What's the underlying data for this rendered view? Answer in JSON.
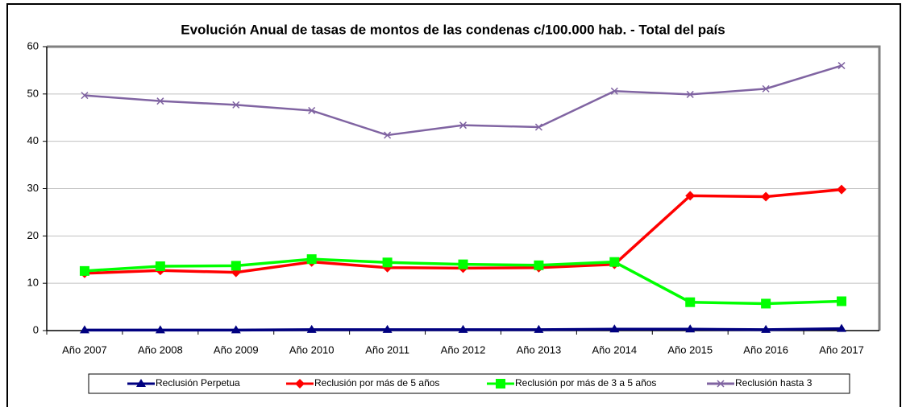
{
  "chart_data": {
    "type": "line",
    "title": "Evolución Anual de tasas de montos de las condenas c/100.000 hab. - Total del país",
    "categories": [
      "Año 2007",
      "Año 2008",
      "Año 2009",
      "Año 2010",
      "Año 2011",
      "Año 2012",
      "Año 2013",
      "Año 2014",
      "Año 2015",
      "Año 2016",
      "Año 2017"
    ],
    "series": [
      {
        "name": "Reclusión Perpetua",
        "color": "#000080",
        "marker": "triangle",
        "values": [
          0.1,
          0.1,
          0.1,
          0.2,
          0.2,
          0.2,
          0.2,
          0.3,
          0.3,
          0.2,
          0.4
        ]
      },
      {
        "name": "Reclusión por más de 5 años",
        "color": "#ff0000",
        "marker": "diamond",
        "values": [
          12.1,
          12.7,
          12.3,
          14.5,
          13.3,
          13.2,
          13.3,
          14.0,
          28.5,
          28.3,
          29.8
        ]
      },
      {
        "name": "Reclusión por más de 3 a 5 años",
        "color": "#00ff00",
        "marker": "square",
        "values": [
          12.6,
          13.6,
          13.7,
          15.1,
          14.4,
          14.0,
          13.8,
          14.5,
          6.0,
          5.7,
          6.2
        ]
      },
      {
        "name": "Reclusión hasta 3",
        "color": "#8064a2",
        "marker": "x",
        "values": [
          49.7,
          48.5,
          47.7,
          46.5,
          41.3,
          43.4,
          43.0,
          50.6,
          49.9,
          51.1,
          56.0
        ]
      }
    ],
    "ylim": [
      0,
      60
    ],
    "yticks": [
      0,
      10,
      20,
      30,
      40,
      50,
      60
    ],
    "grid": true,
    "legend": "bottom"
  }
}
